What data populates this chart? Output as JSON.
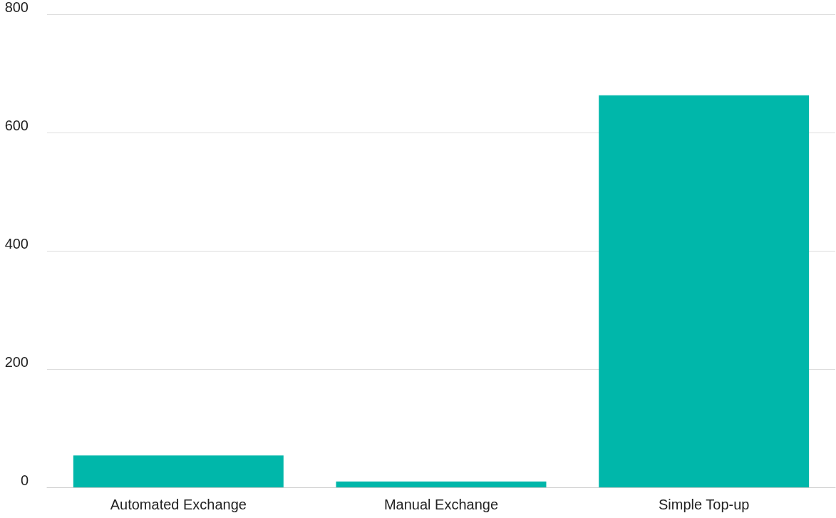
{
  "chart_data": {
    "type": "bar",
    "categories": [
      "Automated Exchange",
      "Manual Exchange",
      "Simple Top-up"
    ],
    "values": [
      54,
      10,
      663
    ],
    "color": "#00b7aa",
    "ylim": [
      0,
      800
    ],
    "yticks": [
      0,
      200,
      400,
      600,
      800
    ],
    "grid": "y"
  }
}
